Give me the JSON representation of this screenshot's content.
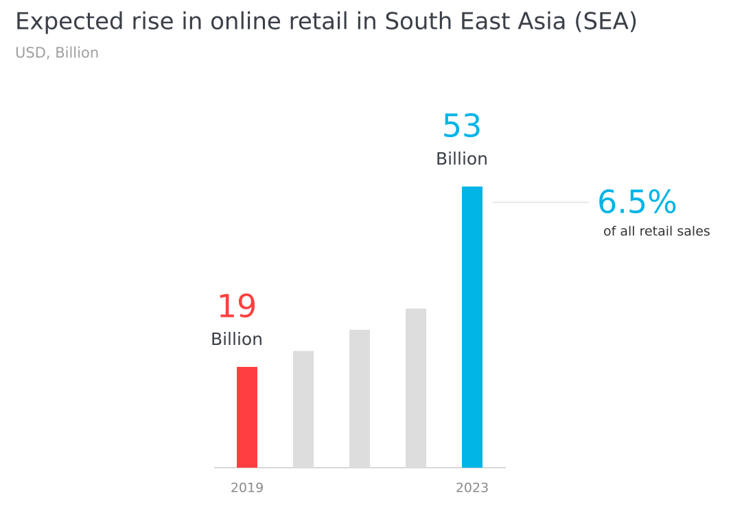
{
  "chart_data": {
    "type": "bar",
    "title": "Expected rise in online retail in South East Asia (SEA)",
    "subtitle": "USD, Billion",
    "categories": [
      "2019",
      null,
      null,
      null,
      "2023"
    ],
    "values": [
      19,
      22,
      26,
      30,
      53
    ],
    "value_labels": [
      "19",
      null,
      null,
      null,
      "53"
    ],
    "value_unit": "Billion",
    "colors": [
      "#ff3f3f",
      "#dddddd",
      "#dddddd",
      "#dddddd",
      "#00b4e6"
    ],
    "annotation": {
      "text": "6.5%",
      "subtext": "of all retail sales"
    }
  }
}
